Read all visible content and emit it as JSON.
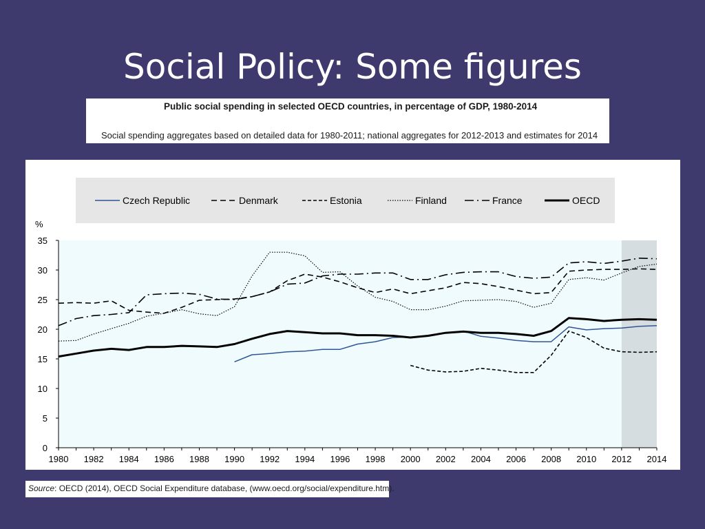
{
  "slide": {
    "title": "Social Policy: Some figures"
  },
  "header": {
    "title": "Public social spending in selected OECD countries, in percentage of GDP, 1980-2014",
    "subtitle": "Social spending aggregates based on detailed data for 1980-2011; national aggregates for 2012-2013 and estimates for 2014"
  },
  "source": {
    "label": "Source",
    "text": ": OECD (2014), OECD Social Expenditure database,  (www.oecd.org/social/expenditure.htm)."
  },
  "chart_data": {
    "type": "line",
    "title": "",
    "xlabel": "",
    "ylabel": "%",
    "ylim": [
      0,
      35
    ],
    "xlim": [
      1980,
      2014
    ],
    "x_ticks": [
      "1980",
      "1982",
      "1984",
      "1986",
      "1988",
      "1990",
      "1992",
      "1994",
      "1996",
      "1998",
      "2000",
      "2002",
      "2004",
      "2006",
      "2008",
      "2010",
      "2012",
      "2014"
    ],
    "y_ticks": [
      "0",
      "5",
      "10",
      "15",
      "20",
      "25",
      "30",
      "35"
    ],
    "grid": false,
    "legend": "top",
    "shaded_range": [
      2012,
      2014
    ],
    "series": [
      {
        "name": "Czech Republic",
        "color": "#2f5496",
        "style": "solid",
        "x": [
          1990,
          1991,
          1992,
          1993,
          1994,
          1995,
          1996,
          1997,
          1998,
          1999,
          2000,
          2001,
          2002,
          2003,
          2004,
          2005,
          2006,
          2007,
          2008,
          2009,
          2010,
          2011,
          2012,
          2013,
          2014
        ],
        "values": [
          14.5,
          15.7,
          15.9,
          16.2,
          16.3,
          16.6,
          16.6,
          17.5,
          17.9,
          18.6,
          18.7,
          18.8,
          19.4,
          19.7,
          18.8,
          18.5,
          18.1,
          17.9,
          17.9,
          20.4,
          19.9,
          20.1,
          20.2,
          20.5,
          20.6
        ]
      },
      {
        "name": "Denmark",
        "color": "#000000",
        "style": "dash",
        "x": [
          1980,
          1981,
          1982,
          1983,
          1984,
          1985,
          1986,
          1987,
          1988,
          1989,
          1990,
          1991,
          1992,
          1993,
          1994,
          1995,
          1996,
          1997,
          1998,
          1999,
          2000,
          2001,
          2002,
          2003,
          2004,
          2005,
          2006,
          2007,
          2008,
          2009,
          2010,
          2011,
          2012,
          2013,
          2014
        ],
        "values": [
          24.4,
          24.5,
          24.4,
          24.8,
          23.2,
          22.9,
          22.7,
          23.7,
          24.9,
          25.0,
          25.1,
          25.5,
          26.3,
          28.2,
          29.3,
          28.8,
          28.0,
          27.0,
          26.2,
          26.8,
          26.0,
          26.5,
          27.0,
          27.9,
          27.7,
          27.2,
          26.6,
          26.0,
          26.2,
          29.8,
          30.0,
          30.1,
          30.1,
          30.2,
          30.1
        ]
      },
      {
        "name": "Estonia",
        "color": "#000000",
        "style": "shortdash",
        "x": [
          2000,
          2001,
          2002,
          2003,
          2004,
          2005,
          2006,
          2007,
          2008,
          2009,
          2010,
          2011,
          2012,
          2013,
          2014
        ],
        "values": [
          13.9,
          13.1,
          12.8,
          12.9,
          13.4,
          13.1,
          12.7,
          12.7,
          15.6,
          19.7,
          18.6,
          16.8,
          16.2,
          16.1,
          16.2
        ]
      },
      {
        "name": "Finland",
        "color": "#000000",
        "style": "dot",
        "x": [
          1980,
          1981,
          1982,
          1983,
          1984,
          1985,
          1986,
          1987,
          1988,
          1989,
          1990,
          1991,
          1992,
          1993,
          1994,
          1995,
          1996,
          1997,
          1998,
          1999,
          2000,
          2001,
          2002,
          2003,
          2004,
          2005,
          2006,
          2007,
          2008,
          2009,
          2010,
          2011,
          2012,
          2013,
          2014
        ],
        "values": [
          18.0,
          18.1,
          19.2,
          20.1,
          21.0,
          22.2,
          22.7,
          23.3,
          22.6,
          22.3,
          23.8,
          29.0,
          33.0,
          33.0,
          32.4,
          29.6,
          29.7,
          27.3,
          25.4,
          24.7,
          23.3,
          23.3,
          23.9,
          24.8,
          24.9,
          25.0,
          24.7,
          23.7,
          24.4,
          28.4,
          28.7,
          28.3,
          29.5,
          30.6,
          31.0
        ]
      },
      {
        "name": "France",
        "color": "#000000",
        "style": "dashdot",
        "x": [
          1980,
          1981,
          1982,
          1983,
          1984,
          1985,
          1986,
          1987,
          1988,
          1989,
          1990,
          1991,
          1992,
          1993,
          1994,
          1995,
          1996,
          1997,
          1998,
          1999,
          2000,
          2001,
          2002,
          2003,
          2004,
          2005,
          2006,
          2007,
          2008,
          2009,
          2010,
          2011,
          2012,
          2013,
          2014
        ],
        "values": [
          20.6,
          21.8,
          22.3,
          22.5,
          22.8,
          25.8,
          26.0,
          26.1,
          25.9,
          25.1,
          25.0,
          25.5,
          26.3,
          27.6,
          27.8,
          29.0,
          29.3,
          29.3,
          29.5,
          29.5,
          28.4,
          28.4,
          29.2,
          29.6,
          29.7,
          29.7,
          28.9,
          28.6,
          28.8,
          31.2,
          31.4,
          31.1,
          31.5,
          32.0,
          31.9
        ]
      },
      {
        "name": "OECD",
        "color": "#000000",
        "style": "thick",
        "x": [
          1980,
          1981,
          1982,
          1983,
          1984,
          1985,
          1986,
          1987,
          1988,
          1989,
          1990,
          1991,
          1992,
          1993,
          1994,
          1995,
          1996,
          1997,
          1998,
          1999,
          2000,
          2001,
          2002,
          2003,
          2004,
          2005,
          2006,
          2007,
          2008,
          2009,
          2010,
          2011,
          2012,
          2013,
          2014
        ],
        "values": [
          15.4,
          15.9,
          16.4,
          16.7,
          16.5,
          17.0,
          17.0,
          17.2,
          17.1,
          17.0,
          17.5,
          18.4,
          19.2,
          19.7,
          19.5,
          19.3,
          19.3,
          19.0,
          19.0,
          18.9,
          18.6,
          18.9,
          19.4,
          19.6,
          19.4,
          19.4,
          19.2,
          18.9,
          19.7,
          21.9,
          21.7,
          21.4,
          21.6,
          21.7,
          21.6
        ]
      }
    ]
  }
}
